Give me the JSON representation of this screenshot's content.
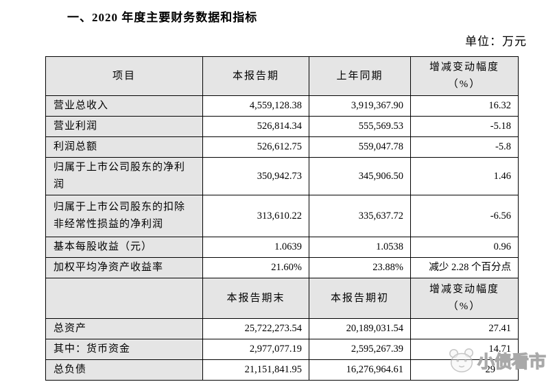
{
  "title": "一、2020 年度主要财务数据和指标",
  "unit_label": "单位：万元",
  "table": {
    "sections": [
      {
        "header": {
          "item": "项目",
          "col2": "本报告期",
          "col3": "上年同期",
          "col4_line1": "增减变动幅度",
          "col4_line2": "（%）"
        },
        "rows": [
          {
            "item": "营业总收入",
            "current": "4,559,128.38",
            "prior": "3,919,367.90",
            "change": "16.32"
          },
          {
            "item": "营业利润",
            "current": "526,814.34",
            "prior": "555,569.53",
            "change": "-5.18"
          },
          {
            "item": "利润总额",
            "current": "526,612.75",
            "prior": "559,047.78",
            "change": "-5.8"
          },
          {
            "item": "归属于上市公司股东的净利润",
            "current": "350,942.73",
            "prior": "345,906.50",
            "change": "1.46"
          },
          {
            "item": "归属于上市公司股东的扣除非经常性损益的净利润",
            "current": "313,610.22",
            "prior": "335,637.72",
            "change": "-6.56",
            "tall": true
          },
          {
            "item": "基本每股收益（元）",
            "current": "1.0639",
            "prior": "1.0538",
            "change": "0.96"
          },
          {
            "item": "加权平均净资产收益率",
            "current": "21.60%",
            "prior": "23.88%",
            "change": "减少 2.28 个百分点"
          }
        ]
      },
      {
        "header": {
          "item": "",
          "col2": "本报告期末",
          "col3": "本报告期初",
          "col4_line1": "增减变动幅度",
          "col4_line2": "（%）"
        },
        "rows": [
          {
            "item": "总资产",
            "current": "25,722,273.54",
            "prior": "20,189,031.54",
            "change": "27.41"
          },
          {
            "item": "其中：货币资金",
            "current": "2,977,077.19",
            "prior": "2,595,267.39",
            "change": "14.71"
          },
          {
            "item": "总负债",
            "current": "21,151,841.95",
            "prior": "16,276,964.61",
            "change": "29",
            "change_obscured": true
          }
        ]
      }
    ]
  },
  "watermark": {
    "text": "小债看市",
    "logo": "panda-face",
    "color": "#a9a9a9"
  }
}
